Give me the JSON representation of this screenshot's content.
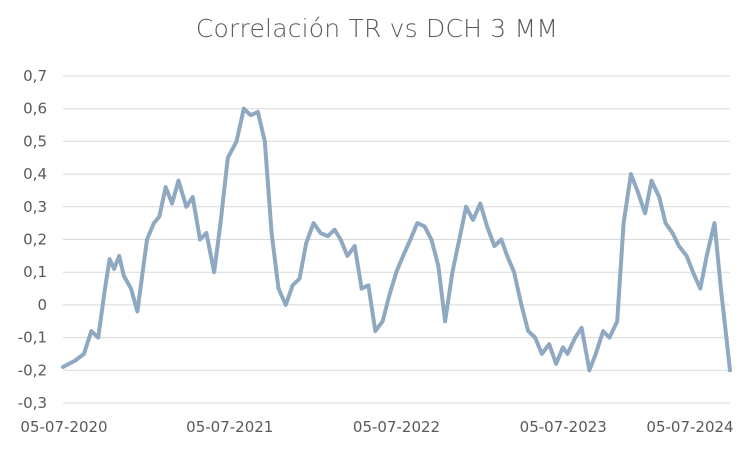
{
  "chart_data": {
    "type": "line",
    "title": "Correlación TR vs DCH 3 MM",
    "xlabel": "",
    "ylabel": "",
    "ylim": [
      -0.3,
      0.7
    ],
    "y_ticks": [
      "-0,3",
      "-0,2",
      "-0,1",
      "0",
      "0,1",
      "0,2",
      "0,3",
      "0,4",
      "0,5",
      "0,6",
      "0,7"
    ],
    "x_tick_labels": [
      "05-07-2020",
      "05-07-2021",
      "05-07-2022",
      "05-07-2023",
      "05-07-2024"
    ],
    "x_range": [
      "2020-07-05",
      "2024-07-05"
    ],
    "grid": true,
    "legend": "none",
    "series_color": "#8ea9c1",
    "series": [
      {
        "x": [
          "2020-07-05",
          "2020-08-01",
          "2020-08-20",
          "2020-09-05",
          "2020-09-20",
          "2020-10-05",
          "2020-10-15",
          "2020-10-25",
          "2020-11-05",
          "2020-11-15",
          "2020-12-01",
          "2020-12-15",
          "2021-01-05",
          "2021-01-20",
          "2021-02-01",
          "2021-02-15",
          "2021-03-01",
          "2021-03-15",
          "2021-04-01",
          "2021-04-15",
          "2021-05-01",
          "2021-05-15",
          "2021-06-01",
          "2021-06-15",
          "2021-07-01",
          "2021-07-20",
          "2021-08-05",
          "2021-08-20",
          "2021-09-05",
          "2021-09-20",
          "2021-10-05",
          "2021-10-20",
          "2021-11-05",
          "2021-11-20",
          "2021-12-05",
          "2021-12-20",
          "2022-01-05",
          "2022-01-20",
          "2022-02-05",
          "2022-02-20",
          "2022-03-05",
          "2022-03-20",
          "2022-04-05",
          "2022-04-20",
          "2022-05-05",
          "2022-05-20",
          "2022-06-05",
          "2022-06-20",
          "2022-07-05",
          "2022-07-20",
          "2022-08-05",
          "2022-08-20",
          "2022-09-05",
          "2022-09-20",
          "2022-10-05",
          "2022-10-20",
          "2022-11-05",
          "2022-11-20",
          "2022-12-05",
          "2022-12-20",
          "2023-01-05",
          "2023-01-20",
          "2023-02-05",
          "2023-02-20",
          "2023-03-05",
          "2023-03-20",
          "2023-04-05",
          "2023-04-20",
          "2023-05-05",
          "2023-05-20",
          "2023-06-05",
          "2023-06-20",
          "2023-07-05",
          "2023-07-15",
          "2023-08-01",
          "2023-08-15",
          "2023-09-01",
          "2023-09-15",
          "2023-10-01",
          "2023-10-15",
          "2023-11-01",
          "2023-11-15",
          "2023-12-01",
          "2023-12-15",
          "2024-01-01",
          "2024-01-15",
          "2024-02-01",
          "2024-02-15",
          "2024-03-01",
          "2024-03-15",
          "2024-04-01",
          "2024-04-15",
          "2024-05-01",
          "2024-05-15",
          "2024-06-01",
          "2024-06-15",
          "2024-07-05"
        ],
        "values": [
          -0.19,
          -0.17,
          -0.15,
          -0.08,
          -0.1,
          0.05,
          0.14,
          0.11,
          0.15,
          0.09,
          0.05,
          -0.02,
          0.2,
          0.25,
          0.27,
          0.36,
          0.31,
          0.38,
          0.3,
          0.33,
          0.2,
          0.22,
          0.1,
          0.25,
          0.45,
          0.5,
          0.6,
          0.58,
          0.59,
          0.5,
          0.22,
          0.05,
          0.0,
          0.06,
          0.08,
          0.19,
          0.25,
          0.22,
          0.21,
          0.23,
          0.2,
          0.15,
          0.18,
          0.05,
          0.06,
          -0.08,
          -0.05,
          0.03,
          0.1,
          0.15,
          0.2,
          0.25,
          0.24,
          0.2,
          0.12,
          -0.05,
          0.1,
          0.2,
          0.3,
          0.26,
          0.31,
          0.24,
          0.18,
          0.2,
          0.15,
          0.1,
          0.0,
          -0.08,
          -0.1,
          -0.15,
          -0.12,
          -0.18,
          -0.13,
          -0.15,
          -0.1,
          -0.07,
          -0.2,
          -0.15,
          -0.08,
          -0.1,
          -0.05,
          0.25,
          0.4,
          0.35,
          0.28,
          0.38,
          0.33,
          0.25,
          0.22,
          0.18,
          0.15,
          0.1,
          0.05,
          0.15,
          0.25,
          0.05,
          -0.2
        ]
      }
    ]
  }
}
